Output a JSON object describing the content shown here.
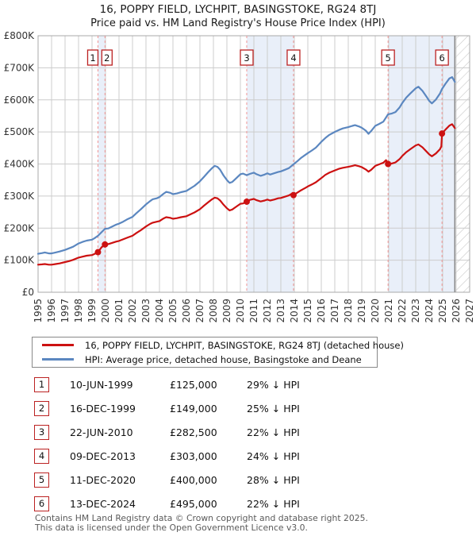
{
  "chart_data": {
    "type": "line",
    "title": "16, POPPY FIELD, LYCHPIT, BASINGSTOKE, RG24 8TJ",
    "subtitle": "Price paid vs. HM Land Registry's House Price Index (HPI)",
    "x_axis": {
      "min": 1995,
      "max": 2027,
      "tick_years": [
        1995,
        1996,
        1997,
        1998,
        1999,
        2000,
        2001,
        2002,
        2003,
        2004,
        2005,
        2006,
        2007,
        2008,
        2009,
        2010,
        2011,
        2012,
        2013,
        2014,
        2015,
        2016,
        2017,
        2018,
        2019,
        2020,
        2021,
        2022,
        2023,
        2024,
        2025,
        2026,
        2027
      ]
    },
    "y_axis": {
      "min": 0,
      "max": 800000,
      "tick_step": 100000,
      "tick_labels": [
        "£0",
        "£100K",
        "£200K",
        "£300K",
        "£400K",
        "£500K",
        "£600K",
        "£700K",
        "£800K"
      ]
    },
    "grid": true,
    "legend_position": "below",
    "colors": {
      "price_paid": "#cc1111",
      "hpi": "#5b87c0",
      "band": "#e9eff9",
      "grid": "#cccccc",
      "border": "#a8a8a8",
      "sale_line": "#f09595",
      "hatch": "#c9c9c9",
      "data_end_line": "#888888",
      "marker_box_border": "#bb2222"
    },
    "ownership_bands": [
      [
        1999.44,
        1999.96
      ],
      [
        2010.47,
        2013.94
      ],
      [
        2020.95,
        2025.9
      ]
    ],
    "data_end_year": 2025.9,
    "sale_markers": [
      {
        "n": "1",
        "year": 1999.44,
        "price_k": 125
      },
      {
        "n": "2",
        "year": 1999.96,
        "price_k": 149
      },
      {
        "n": "3",
        "year": 2010.47,
        "price_k": 282.5
      },
      {
        "n": "4",
        "year": 2013.94,
        "price_k": 303
      },
      {
        "n": "5",
        "year": 2020.95,
        "price_k": 400
      },
      {
        "n": "6",
        "year": 2024.95,
        "price_k": 495
      }
    ],
    "legend": [
      {
        "name": "price_paid",
        "label": "16, POPPY FIELD, LYCHPIT, BASINGSTOKE, RG24 8TJ (detached house)"
      },
      {
        "name": "hpi",
        "label": "HPI: Average price, detached house, Basingstoke and Deane"
      }
    ],
    "series": [
      {
        "name": "hpi",
        "color": "#5b87c0",
        "points": [
          [
            1995,
            120
          ],
          [
            1995.3,
            122
          ],
          [
            1995.5,
            124
          ],
          [
            1995.8,
            121
          ],
          [
            1996,
            121
          ],
          [
            1996.3,
            124
          ],
          [
            1996.6,
            127
          ],
          [
            1997,
            132
          ],
          [
            1997.3,
            137
          ],
          [
            1997.6,
            142
          ],
          [
            1998,
            152
          ],
          [
            1998.3,
            157
          ],
          [
            1998.6,
            161
          ],
          [
            1999,
            164
          ],
          [
            1999.2,
            169
          ],
          [
            1999.44,
            176
          ],
          [
            1999.7,
            187
          ],
          [
            1999.96,
            198
          ],
          [
            2000.2,
            199
          ],
          [
            2000.5,
            205
          ],
          [
            2000.8,
            211
          ],
          [
            2001,
            214
          ],
          [
            2001.3,
            220
          ],
          [
            2001.6,
            227
          ],
          [
            2002,
            235
          ],
          [
            2002.3,
            247
          ],
          [
            2002.6,
            258
          ],
          [
            2003,
            274
          ],
          [
            2003.3,
            284
          ],
          [
            2003.5,
            290
          ],
          [
            2003.8,
            293
          ],
          [
            2004,
            297
          ],
          [
            2004.3,
            307
          ],
          [
            2004.5,
            313
          ],
          [
            2004.8,
            310
          ],
          [
            2005,
            306
          ],
          [
            2005.3,
            308
          ],
          [
            2005.6,
            312
          ],
          [
            2006,
            316
          ],
          [
            2006.3,
            324
          ],
          [
            2006.6,
            332
          ],
          [
            2007,
            346
          ],
          [
            2007.3,
            360
          ],
          [
            2007.6,
            374
          ],
          [
            2007.9,
            387
          ],
          [
            2008.1,
            394
          ],
          [
            2008.3,
            391
          ],
          [
            2008.5,
            382
          ],
          [
            2008.75,
            364
          ],
          [
            2009,
            350
          ],
          [
            2009.2,
            341
          ],
          [
            2009.4,
            344
          ],
          [
            2009.6,
            352
          ],
          [
            2009.8,
            360
          ],
          [
            2010,
            368
          ],
          [
            2010.2,
            370
          ],
          [
            2010.47,
            365
          ],
          [
            2010.7,
            369
          ],
          [
            2011,
            373
          ],
          [
            2011.2,
            368
          ],
          [
            2011.5,
            363
          ],
          [
            2011.8,
            367
          ],
          [
            2012,
            371
          ],
          [
            2012.2,
            367
          ],
          [
            2012.5,
            371
          ],
          [
            2012.8,
            375
          ],
          [
            2013,
            377
          ],
          [
            2013.3,
            382
          ],
          [
            2013.6,
            387
          ],
          [
            2013.94,
            399
          ],
          [
            2014.2,
            408
          ],
          [
            2014.5,
            419
          ],
          [
            2014.8,
            428
          ],
          [
            2015,
            434
          ],
          [
            2015.3,
            442
          ],
          [
            2015.6,
            451
          ],
          [
            2016,
            469
          ],
          [
            2016.3,
            481
          ],
          [
            2016.6,
            491
          ],
          [
            2017,
            500
          ],
          [
            2017.3,
            506
          ],
          [
            2017.6,
            511
          ],
          [
            2018,
            515
          ],
          [
            2018.3,
            519
          ],
          [
            2018.5,
            521
          ],
          [
            2018.8,
            517
          ],
          [
            2019,
            513
          ],
          [
            2019.3,
            504
          ],
          [
            2019.5,
            494
          ],
          [
            2019.7,
            503
          ],
          [
            2020,
            519
          ],
          [
            2020.3,
            525
          ],
          [
            2020.6,
            532
          ],
          [
            2020.95,
            555
          ],
          [
            2021.2,
            557
          ],
          [
            2021.5,
            562
          ],
          [
            2021.8,
            576
          ],
          [
            2022,
            590
          ],
          [
            2022.3,
            607
          ],
          [
            2022.6,
            620
          ],
          [
            2023,
            636
          ],
          [
            2023.2,
            641
          ],
          [
            2023.5,
            628
          ],
          [
            2023.8,
            610
          ],
          [
            2024,
            597
          ],
          [
            2024.2,
            589
          ],
          [
            2024.5,
            601
          ],
          [
            2024.8,
            620
          ],
          [
            2024.95,
            634
          ],
          [
            2025.2,
            650
          ],
          [
            2025.5,
            667
          ],
          [
            2025.7,
            671
          ],
          [
            2025.9,
            656
          ]
        ]
      },
      {
        "name": "price_paid",
        "color": "#cc1111",
        "points": [
          [
            1995,
            86
          ],
          [
            1995.3,
            87
          ],
          [
            1995.5,
            88
          ],
          [
            1995.8,
            86
          ],
          [
            1996,
            86
          ],
          [
            1996.3,
            88
          ],
          [
            1996.6,
            90
          ],
          [
            1997,
            94
          ],
          [
            1997.3,
            97
          ],
          [
            1997.6,
            101
          ],
          [
            1998,
            108
          ],
          [
            1998.3,
            111
          ],
          [
            1998.6,
            114
          ],
          [
            1999,
            116
          ],
          [
            1999.2,
            120
          ],
          [
            1999.44,
            125
          ],
          [
            1999.7,
            140
          ],
          [
            1999.96,
            149
          ],
          [
            2000.2,
            150
          ],
          [
            2000.5,
            154
          ],
          [
            2000.8,
            158
          ],
          [
            2001,
            160
          ],
          [
            2001.3,
            165
          ],
          [
            2001.6,
            170
          ],
          [
            2002,
            176
          ],
          [
            2002.3,
            185
          ],
          [
            2002.6,
            193
          ],
          [
            2003,
            205
          ],
          [
            2003.3,
            213
          ],
          [
            2003.5,
            217
          ],
          [
            2003.8,
            220
          ],
          [
            2004,
            222
          ],
          [
            2004.3,
            230
          ],
          [
            2004.5,
            234
          ],
          [
            2004.8,
            232
          ],
          [
            2005,
            229
          ],
          [
            2005.3,
            231
          ],
          [
            2005.6,
            234
          ],
          [
            2006,
            237
          ],
          [
            2006.3,
            243
          ],
          [
            2006.6,
            249
          ],
          [
            2007,
            259
          ],
          [
            2007.3,
            270
          ],
          [
            2007.6,
            280
          ],
          [
            2007.9,
            290
          ],
          [
            2008.1,
            295
          ],
          [
            2008.3,
            293
          ],
          [
            2008.5,
            286
          ],
          [
            2008.75,
            273
          ],
          [
            2009,
            262
          ],
          [
            2009.2,
            255
          ],
          [
            2009.4,
            258
          ],
          [
            2009.6,
            264
          ],
          [
            2009.8,
            270
          ],
          [
            2010,
            276
          ],
          [
            2010.2,
            277
          ],
          [
            2010.47,
            282.5
          ],
          [
            2010.7,
            288
          ],
          [
            2011,
            291
          ],
          [
            2011.2,
            287
          ],
          [
            2011.5,
            283
          ],
          [
            2011.8,
            286
          ],
          [
            2012,
            289
          ],
          [
            2012.2,
            286
          ],
          [
            2012.5,
            289
          ],
          [
            2012.8,
            293
          ],
          [
            2013,
            294
          ],
          [
            2013.3,
            298
          ],
          [
            2013.6,
            302
          ],
          [
            2013.8,
            307
          ],
          [
            2013.94,
            303
          ],
          [
            2014.2,
            310
          ],
          [
            2014.5,
            318
          ],
          [
            2014.8,
            325
          ],
          [
            2015,
            330
          ],
          [
            2015.3,
            336
          ],
          [
            2015.6,
            343
          ],
          [
            2016,
            356
          ],
          [
            2016.3,
            366
          ],
          [
            2016.6,
            373
          ],
          [
            2017,
            380
          ],
          [
            2017.3,
            385
          ],
          [
            2017.6,
            388
          ],
          [
            2018,
            391
          ],
          [
            2018.3,
            394
          ],
          [
            2018.5,
            396
          ],
          [
            2018.8,
            393
          ],
          [
            2019,
            390
          ],
          [
            2019.3,
            383
          ],
          [
            2019.5,
            376
          ],
          [
            2019.7,
            382
          ],
          [
            2020,
            394
          ],
          [
            2020.3,
            399
          ],
          [
            2020.6,
            404
          ],
          [
            2020.8,
            412
          ],
          [
            2020.95,
            400
          ],
          [
            2021.2,
            401
          ],
          [
            2021.5,
            405
          ],
          [
            2021.8,
            415
          ],
          [
            2022,
            425
          ],
          [
            2022.3,
            437
          ],
          [
            2022.6,
            446
          ],
          [
            2023,
            458
          ],
          [
            2023.2,
            461
          ],
          [
            2023.5,
            452
          ],
          [
            2023.8,
            439
          ],
          [
            2024,
            430
          ],
          [
            2024.2,
            424
          ],
          [
            2024.5,
            433
          ],
          [
            2024.8,
            446
          ],
          [
            2024.9,
            455
          ],
          [
            2024.95,
            495
          ],
          [
            2025.2,
            507
          ],
          [
            2025.5,
            520
          ],
          [
            2025.7,
            524
          ],
          [
            2025.9,
            512
          ]
        ]
      }
    ]
  },
  "transactions": [
    {
      "num": "1",
      "date": "10-JUN-1999",
      "price": "£125,000",
      "hpi_diff": "29% ↓ HPI"
    },
    {
      "num": "2",
      "date": "16-DEC-1999",
      "price": "£149,000",
      "hpi_diff": "25% ↓ HPI"
    },
    {
      "num": "3",
      "date": "22-JUN-2010",
      "price": "£282,500",
      "hpi_diff": "22% ↓ HPI"
    },
    {
      "num": "4",
      "date": "09-DEC-2013",
      "price": "£303,000",
      "hpi_diff": "24% ↓ HPI"
    },
    {
      "num": "5",
      "date": "11-DEC-2020",
      "price": "£400,000",
      "hpi_diff": "28% ↓ HPI"
    },
    {
      "num": "6",
      "date": "13-DEC-2024",
      "price": "£495,000",
      "hpi_diff": "22% ↓ HPI"
    }
  ],
  "footer": {
    "line1": "Contains HM Land Registry data © Crown copyright and database right 2025.",
    "line2": "This data is licensed under the Open Government Licence v3.0."
  }
}
